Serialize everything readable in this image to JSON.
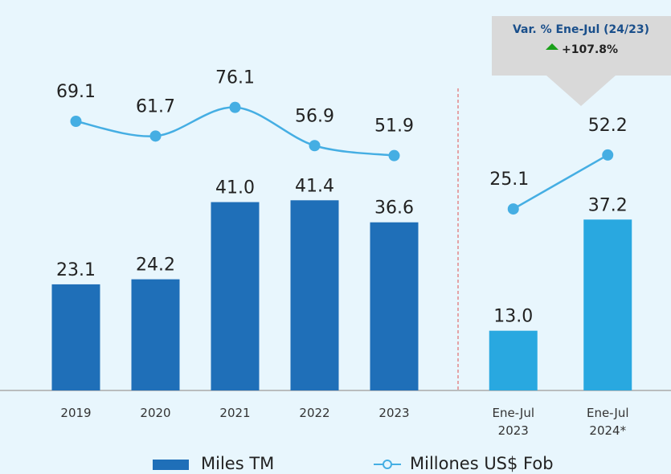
{
  "chart_data": {
    "type": "bar-line",
    "categories": [
      "2019",
      "2020",
      "2021",
      "2022",
      "2023",
      "Ene-Jul 2023",
      "Ene-Jul 2024*"
    ],
    "split_index": 5,
    "series": [
      {
        "name": "Miles TM",
        "type": "bar",
        "color": "#1f6fb8",
        "colors": [
          "#1f6fb8",
          "#1f6fb8",
          "#1f6fb8",
          "#1f6fb8",
          "#1f6fb8",
          "#29a8e0",
          "#29a8e0"
        ],
        "values": [
          23.1,
          24.2,
          41.0,
          41.4,
          36.6,
          13.0,
          37.2
        ],
        "value_labels": [
          "23.1",
          "24.2",
          "41.0",
          "41.4",
          "36.6",
          "13.0",
          "37.2"
        ]
      },
      {
        "name": "Millones US$ Fob",
        "type": "line",
        "axis": "y2",
        "color": "#45aee3",
        "values": [
          69.1,
          61.7,
          76.1,
          56.9,
          51.9,
          25.1,
          52.2
        ],
        "value_labels": [
          "69.1",
          "61.7",
          "76.1",
          "56.9",
          "51.9",
          "25.1",
          "52.2"
        ]
      }
    ],
    "ylim": [
      0,
      85
    ],
    "y2lim": [
      -66,
      130
    ],
    "annotation": {
      "title": "Var. % Ene-Jul (24/23)",
      "value": "+107.8%",
      "color": "#1a4f8b",
      "arrow_color": "#1aa01a"
    }
  }
}
